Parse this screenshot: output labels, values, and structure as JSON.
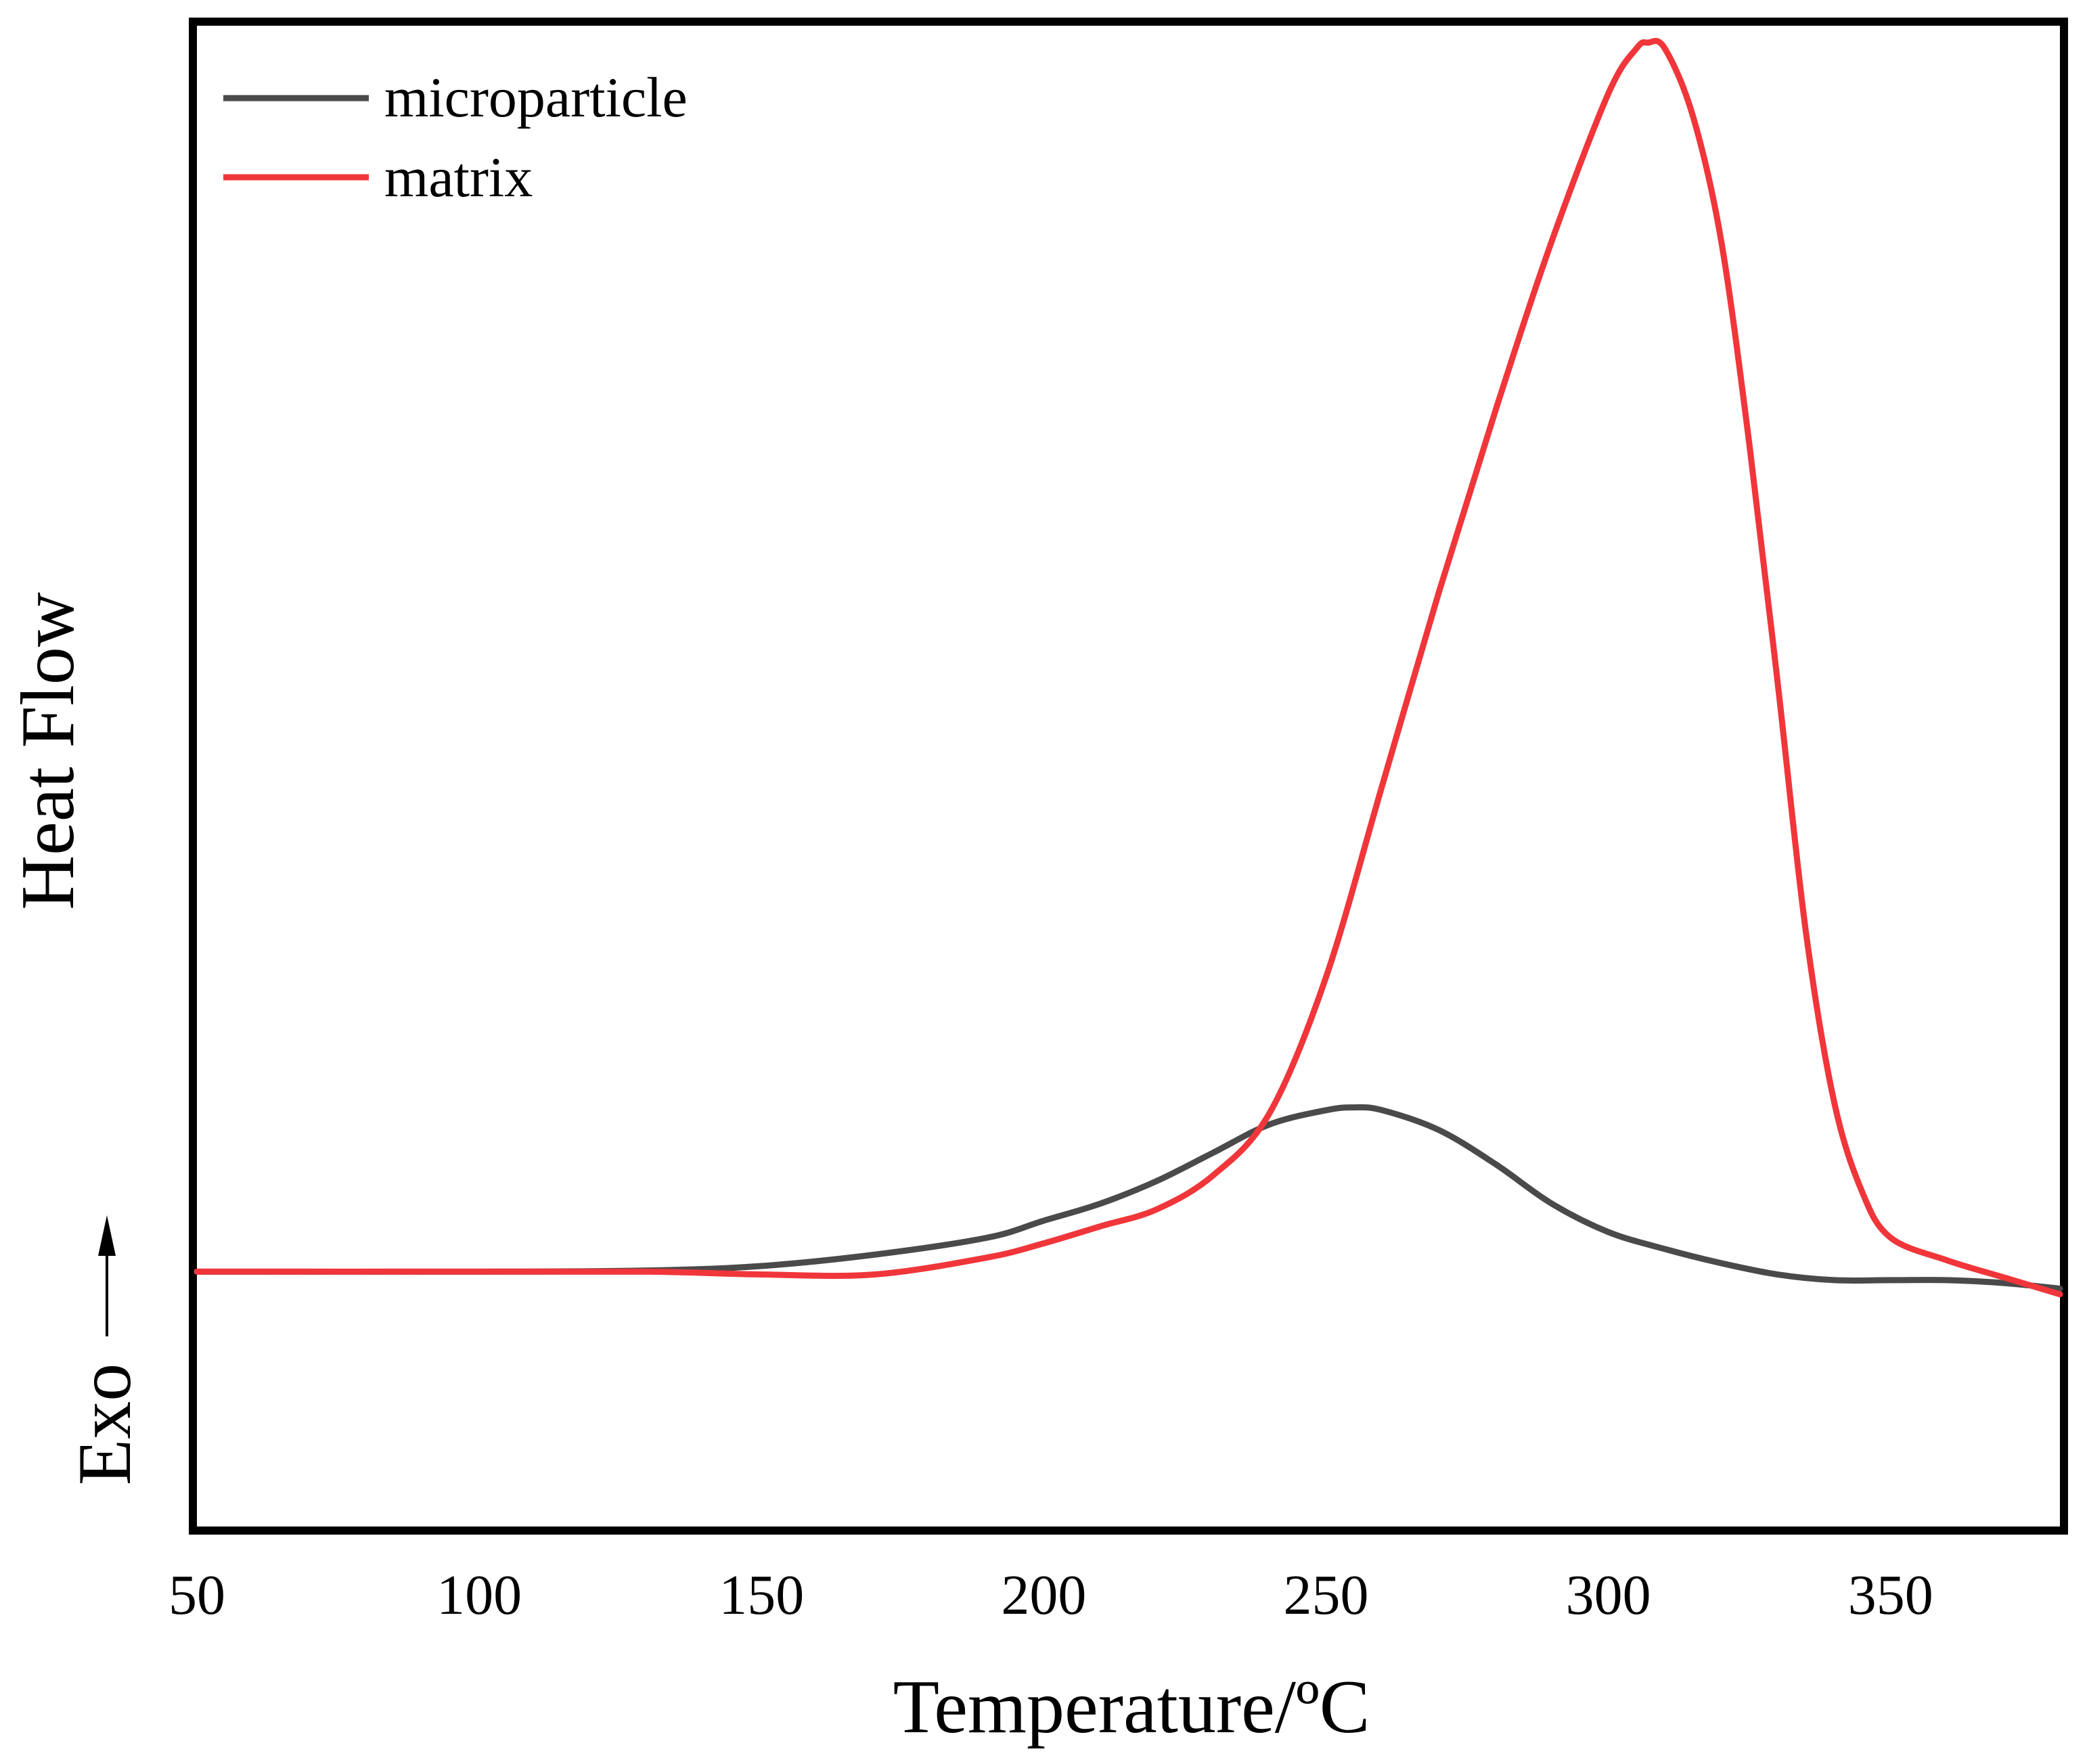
{
  "chart_data": {
    "type": "line",
    "title": "",
    "xlabel": "Temperature/ºC",
    "ylabel": "Heat Flow",
    "exo_label": "Exo",
    "xlim": [
      50,
      380
    ],
    "ylim": [
      -0.45,
      2.2
    ],
    "x_ticks": [
      50,
      100,
      150,
      200,
      250,
      300,
      350
    ],
    "x_tick_labels": [
      "50",
      "100",
      "150",
      "200",
      "250",
      "300",
      "350"
    ],
    "y_ticks_shown": false,
    "grid": false,
    "legend_position": "top-left",
    "series": [
      {
        "name": "microparticle",
        "color": "#4a4a4a",
        "x": [
          50,
          100,
          130,
          150,
          170,
          190,
          200,
          210,
          220,
          230,
          240,
          250,
          255,
          260,
          270,
          280,
          290,
          300,
          310,
          320,
          330,
          340,
          350,
          360,
          370,
          380
        ],
        "y": [
          0,
          0,
          0.002,
          0.01,
          0.03,
          0.06,
          0.09,
          0.12,
          0.16,
          0.21,
          0.26,
          0.285,
          0.29,
          0.285,
          0.25,
          0.19,
          0.12,
          0.07,
          0.04,
          0.015,
          -0.005,
          -0.015,
          -0.015,
          -0.015,
          -0.02,
          -0.03
        ]
      },
      {
        "name": "matrix",
        "color": "#f0363a",
        "x": [
          50,
          100,
          130,
          150,
          170,
          190,
          200,
          210,
          220,
          230,
          240,
          250,
          260,
          270,
          280,
          290,
          300,
          305,
          307,
          310,
          315,
          320,
          325,
          330,
          335,
          340,
          345,
          350,
          360,
          370,
          380
        ],
        "y": [
          0,
          0,
          0,
          -0.005,
          -0.005,
          0.025,
          0.05,
          0.08,
          0.11,
          0.17,
          0.28,
          0.52,
          0.86,
          1.2,
          1.52,
          1.82,
          2.08,
          2.16,
          2.17,
          2.16,
          2.04,
          1.82,
          1.46,
          1.04,
          0.6,
          0.3,
          0.14,
          0.06,
          0.02,
          -0.01,
          -0.04
        ]
      }
    ]
  }
}
